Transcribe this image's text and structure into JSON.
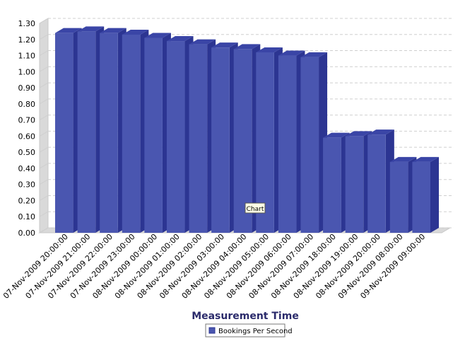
{
  "chart_data": {
    "type": "bar",
    "xlabel": "Measurement Time",
    "ylabel": "",
    "ylim": [
      0,
      1.3
    ],
    "yticks": [
      "0.00",
      "0.10",
      "0.20",
      "0.30",
      "0.40",
      "0.50",
      "0.60",
      "0.70",
      "0.80",
      "0.90",
      "1.00",
      "1.10",
      "1.20",
      "1.30"
    ],
    "grid": true,
    "three_d": true,
    "legend_position": "bottom-center",
    "categories": [
      "07-Nov-2009 20:00:00",
      "07-Nov-2009 21:00:00",
      "07-Nov-2009 22:00:00",
      "07-Nov-2009 23:00:00",
      "08-Nov-2009 00:00:00",
      "08-Nov-2009 01:00:00",
      "08-Nov-2009 02:00:00",
      "08-Nov-2009 03:00:00",
      "08-Nov-2009 04:00:00",
      "08-Nov-2009 05:00:00",
      "08-Nov-2009 06:00:00",
      "08-Nov-2009 07:00:00",
      "08-Nov-2009 18:00:00",
      "08-Nov-2009 19:00:00",
      "08-Nov-2009 20:00:00",
      "09-Nov-2009 08:00:00",
      "09-Nov-2009 09:00:00"
    ],
    "series": [
      {
        "name": "Bookings Per Second",
        "color": "#4a56b0",
        "values": [
          1.24,
          1.25,
          1.24,
          1.23,
          1.21,
          1.19,
          1.17,
          1.15,
          1.14,
          1.12,
          1.1,
          1.09,
          0.59,
          0.6,
          0.61,
          0.44,
          0.44
        ]
      }
    ],
    "tooltip": "Chart"
  }
}
